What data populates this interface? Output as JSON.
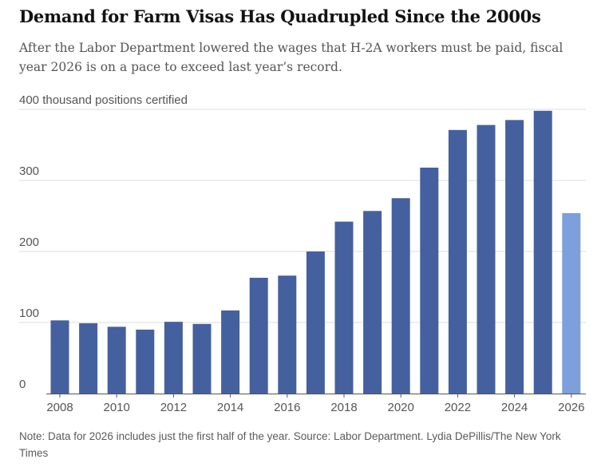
{
  "title": "Demand for Farm Visas Has Quadrupled Since the 2000s",
  "subtitle": "After the Labor Department lowered the wages that H-2A workers must be paid, fiscal year 2026 is on a pace to exceed last year’s record.",
  "note": {
    "note_text": "Note: Data for 2026 includes just the first half of the year.",
    "source_text": "Source: Labor Department.",
    "credit_text": "Lydia DePillis/The New York Times"
  },
  "colors": {
    "bar": "#45609e",
    "bar_partial": "#7d9fdb",
    "grid": "#dddddd",
    "axis": "#555555",
    "tick_text": "#555555"
  },
  "chart_data": {
    "type": "bar",
    "ylabel": "400 thousand positions certified",
    "ylim": [
      0,
      400
    ],
    "y_ticks": [
      0,
      100,
      200,
      300,
      400
    ],
    "y_tick_labels": [
      "0",
      "100",
      "200",
      "300",
      "400 thousand positions certified"
    ],
    "x_tick_labels": [
      "2008",
      "2010",
      "2012",
      "2014",
      "2016",
      "2018",
      "2020",
      "2022",
      "2024",
      "2026"
    ],
    "categories": [
      "2008",
      "2009",
      "2010",
      "2011",
      "2012",
      "2013",
      "2014",
      "2015",
      "2016",
      "2017",
      "2018",
      "2019",
      "2020",
      "2021",
      "2022",
      "2023",
      "2024",
      "2025",
      "2026"
    ],
    "values": [
      103,
      99,
      94,
      90,
      101,
      98,
      117,
      163,
      166,
      200,
      242,
      257,
      275,
      318,
      371,
      378,
      385,
      398,
      254
    ],
    "partial_categories": [
      "2026"
    ],
    "grid": true
  }
}
